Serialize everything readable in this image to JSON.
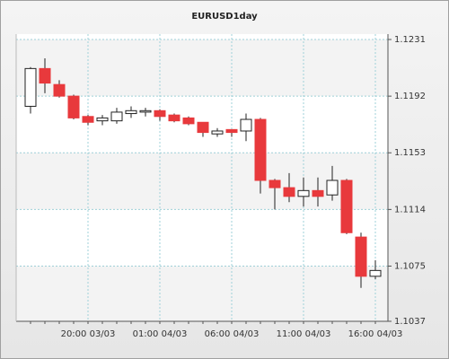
{
  "chart_data": {
    "type": "candlestick",
    "title": "EURUSD1day",
    "categories": [
      null,
      null,
      null,
      null,
      "20:00 03/03",
      null,
      null,
      null,
      null,
      "01:00 04/03",
      null,
      null,
      null,
      null,
      "06:00 04/03",
      null,
      null,
      null,
      null,
      "11:00 04/03",
      null,
      null,
      null,
      null,
      "16:00 04/03"
    ],
    "open": [
      1.1185,
      1.1211,
      1.12,
      1.1192,
      1.1178,
      1.1175,
      1.1175,
      1.118,
      1.1181,
      1.1182,
      1.1179,
      1.1177,
      1.1174,
      1.1166,
      1.1169,
      1.1168,
      1.1176,
      1.1134,
      1.1129,
      1.1123,
      1.1127,
      1.1124,
      1.1134,
      1.1095,
      1.1068
    ],
    "high": [
      1.1212,
      1.1218,
      1.1203,
      1.1193,
      1.1179,
      1.1179,
      1.1184,
      1.1185,
      1.1184,
      1.1183,
      1.118,
      1.1178,
      1.1174,
      1.117,
      1.1169,
      1.118,
      1.1177,
      1.1135,
      1.1139,
      1.1136,
      1.1136,
      1.1144,
      1.1135,
      1.1098,
      1.1079
    ],
    "low": [
      1.118,
      1.1194,
      1.1191,
      1.1176,
      1.1172,
      1.1172,
      1.1173,
      1.1177,
      1.1178,
      1.1175,
      1.1174,
      1.1172,
      1.1164,
      1.1164,
      1.1164,
      1.1161,
      1.1125,
      1.1114,
      1.1119,
      1.1116,
      1.1116,
      1.112,
      1.1097,
      1.106,
      1.1066
    ],
    "close": [
      1.1211,
      1.1201,
      1.1192,
      1.1177,
      1.1174,
      1.1177,
      1.1181,
      1.1182,
      1.1182,
      1.1178,
      1.1175,
      1.1173,
      1.1167,
      1.1168,
      1.1167,
      1.1176,
      1.1134,
      1.1129,
      1.1123,
      1.1127,
      1.1123,
      1.1134,
      1.1098,
      1.1068,
      1.1072
    ],
    "up_color": "#ffffff",
    "down_color": "#e8393c",
    "ylim": [
      1.1037,
      1.1231
    ],
    "yticks": [
      1.1037,
      1.1075,
      1.1114,
      1.1153,
      1.1192,
      1.1231
    ],
    "grid": true
  }
}
